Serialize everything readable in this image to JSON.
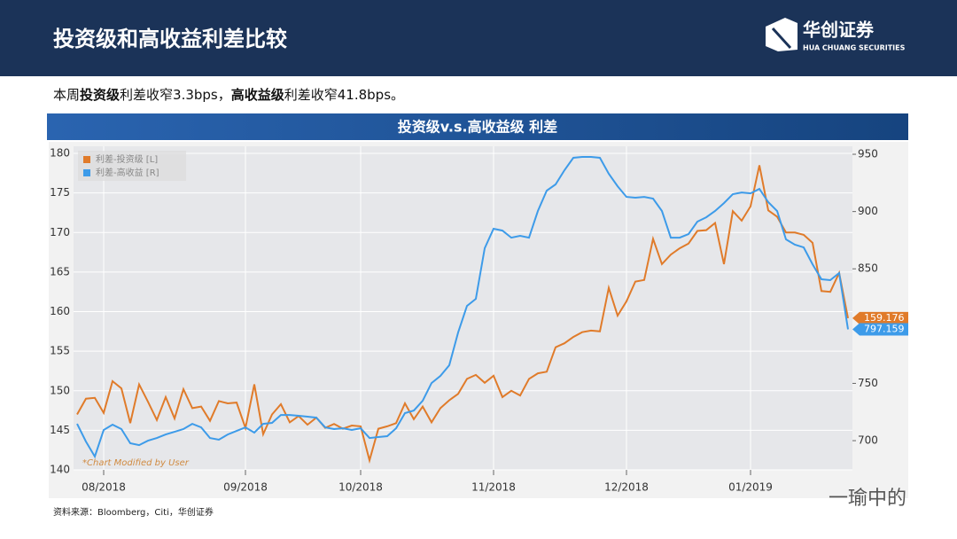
{
  "header": {
    "title": "投资级和高收益利差比较",
    "logo_cn": "华创证券",
    "logo_en": "HUA CHUANG SECURITIES"
  },
  "summary": {
    "runs": [
      {
        "text": "本周",
        "bold": false
      },
      {
        "text": "投资级",
        "bold": true
      },
      {
        "text": "利差收窄3.3bps，",
        "bold": false
      },
      {
        "text": "高收益级",
        "bold": true
      },
      {
        "text": "利差收窄41.8bps。",
        "bold": false
      }
    ]
  },
  "source": "资料来源：Bloomberg，Citi，华创证券",
  "watermark": "一瑜中的",
  "chart_data": {
    "type": "line",
    "title": "投资级v.s.高收益级 利差",
    "annotation": "*Chart Modified by User",
    "grid": true,
    "legend": "upper left",
    "categories": [
      null,
      null,
      null,
      "08/2018",
      null,
      null,
      null,
      null,
      null,
      null,
      null,
      null,
      null,
      null,
      null,
      null,
      null,
      null,
      null,
      "09/2018",
      null,
      null,
      null,
      null,
      null,
      null,
      null,
      null,
      null,
      null,
      null,
      null,
      "10/2018",
      null,
      null,
      null,
      null,
      null,
      null,
      null,
      null,
      null,
      null,
      null,
      null,
      null,
      null,
      "11/2018",
      null,
      null,
      null,
      null,
      null,
      null,
      null,
      null,
      null,
      null,
      null,
      null,
      null,
      null,
      "12/2018",
      null,
      null,
      null,
      null,
      null,
      null,
      null,
      null,
      null,
      null,
      null,
      null,
      null,
      "01/2019",
      null,
      null,
      null,
      null,
      null,
      null,
      null,
      null,
      null,
      null,
      null
    ],
    "ylim": [
      140,
      180
    ],
    "yticks": [
      140,
      145,
      150,
      155,
      160,
      165,
      170,
      175,
      180
    ],
    "y2lim": [
      674.5,
      950.8
    ],
    "y2ticks": [
      700,
      750,
      850,
      900,
      950
    ],
    "series": [
      {
        "name": "利差-投资级 [L]",
        "color": "#e07b2a",
        "axis": "y",
        "values": [
          147.0,
          149.0,
          149.1,
          147.2,
          151.2,
          150.3,
          145.9,
          150.8,
          148.6,
          146.3,
          149.2,
          146.5,
          150.2,
          147.8,
          148.0,
          146.2,
          148.7,
          148.4,
          148.5,
          145.3,
          150.8,
          144.5,
          147.0,
          148.3,
          146.0,
          146.8,
          145.7,
          146.6,
          145.3,
          145.8,
          145.2,
          145.6,
          145.5,
          141.2,
          145.2,
          145.5,
          145.9,
          148.4,
          146.4,
          148.0,
          146.0,
          147.8,
          148.8,
          149.6,
          151.5,
          152.0,
          151.0,
          151.9,
          149.2,
          150.0,
          149.4,
          151.5,
          152.2,
          152.4,
          155.5,
          156.0,
          156.8,
          157.4,
          157.6,
          157.5,
          163.0,
          159.5,
          161.3,
          163.8,
          164.0,
          169.2,
          166.0,
          167.2,
          168.0,
          168.6,
          170.2,
          170.3,
          171.2,
          166.0,
          172.7,
          171.5,
          173.3,
          178.5,
          172.8,
          172.0,
          170.0,
          170.0,
          169.7,
          168.7,
          162.6,
          162.5,
          164.9,
          159.176
        ]
      },
      {
        "name": "利差-高收益 [R]",
        "color": "#3d9be9",
        "axis": "y2",
        "values": [
          714.7,
          699.2,
          686.1,
          709.3,
          714.0,
          710.1,
          697.7,
          696.1,
          700.0,
          702.3,
          705.4,
          707.7,
          710.1,
          714.7,
          711.6,
          702.3,
          700.8,
          705.4,
          708.5,
          711.6,
          707.0,
          714.7,
          715.5,
          722.4,
          722.4,
          721.7,
          720.9,
          720.1,
          711.6,
          710.1,
          710.8,
          709.3,
          710.8,
          702.3,
          703.1,
          703.9,
          710.8,
          724.0,
          726.3,
          734.8,
          750.3,
          756.5,
          765.8,
          794.4,
          817.6,
          823.8,
          868.0,
          885.0,
          883.4,
          877.2,
          878.8,
          877.2,
          900.5,
          918.3,
          923.7,
          936.1,
          946.9,
          947.7,
          947.7,
          946.9,
          933.0,
          922.1,
          912.8,
          912.1,
          912.8,
          911.3,
          900.5,
          877.2,
          877.2,
          880.3,
          891.2,
          895.0,
          900.5,
          907.4,
          915.2,
          916.7,
          915.9,
          919.8,
          908.2,
          900.5,
          875.7,
          871.1,
          868.7,
          854.0,
          840.9,
          840.1,
          846.3,
          797.159
        ]
      }
    ]
  }
}
